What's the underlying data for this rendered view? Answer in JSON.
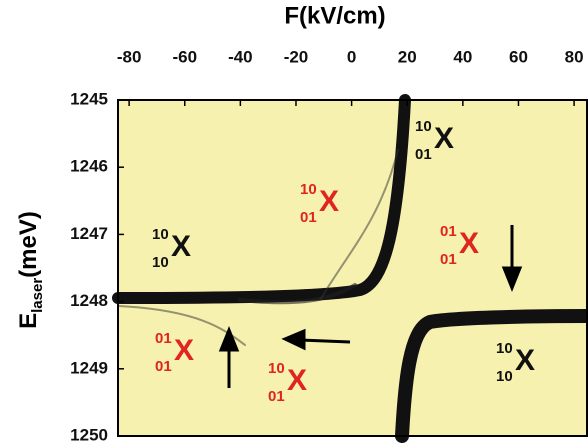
{
  "chart_data": {
    "type": "heatmap",
    "title": "F(kV/cm)",
    "ylabel": {
      "main": "E",
      "sub": "laser",
      "rest": "(meV)"
    },
    "xlim": [
      -84,
      85
    ],
    "xticks": [
      -80,
      -60,
      -40,
      -20,
      0,
      20,
      40,
      60,
      80
    ],
    "ylim": [
      1245,
      1250
    ],
    "yticks": [
      1245,
      1246,
      1247,
      1248,
      1249,
      1250
    ],
    "background": "#f6f1ae",
    "annotations": [
      {
        "sup": "10",
        "text": "X",
        "sub": "01",
        "color": "#111111"
      },
      {
        "sup": "10",
        "text": "X",
        "sub": "01",
        "color": "#e0241f"
      },
      {
        "sup": "10",
        "text": "X",
        "sub": "10",
        "color": "#111111"
      },
      {
        "sup": "01",
        "text": "X",
        "sub": "01",
        "color": "#e0241f"
      },
      {
        "sup": "01",
        "text": "X",
        "sub": "01",
        "color": "#e0241f"
      },
      {
        "sup": "10",
        "text": "X",
        "sub": "01",
        "color": "#e0241f"
      },
      {
        "sup": "10",
        "text": "X",
        "sub": "10",
        "color": "#111111"
      }
    ]
  }
}
